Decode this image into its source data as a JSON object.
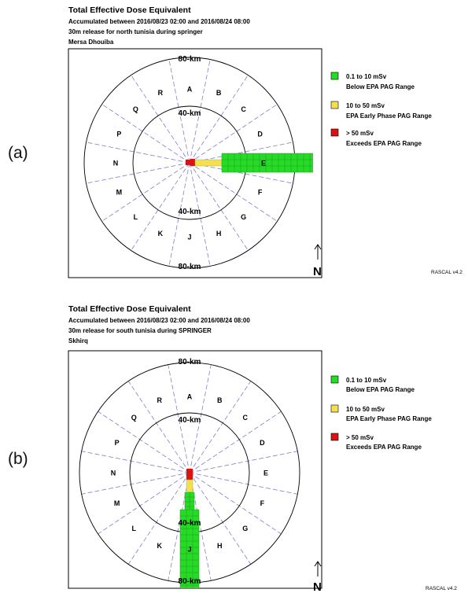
{
  "panels": [
    {
      "label": "(a)",
      "title": "Total Effective Dose Equivalent",
      "subtitle1": "Accumulated between 2016/08/23 02:00 and 2016/08/24 08:00",
      "subtitle2": "30m release for north tunisia during springer",
      "site": "Mersa Dhouiba"
    },
    {
      "label": "(b)",
      "title": "Total Effective Dose Equivalent",
      "subtitle1": "Accumulated between 2016/08/23 02:00 and 2016/08/24 08:00",
      "subtitle2": "30m release for south tunisia during SPRINGER",
      "site": "Skhirq"
    }
  ],
  "rings": {
    "outer": "80-km",
    "inner": "40-km"
  },
  "sectors": [
    "A",
    "B",
    "C",
    "D",
    "E",
    "F",
    "G",
    "H",
    "J",
    "K",
    "L",
    "M",
    "N",
    "P",
    "Q",
    "R"
  ],
  "legend": [
    {
      "color": "#22dd22",
      "range": "0.1 to 10 mSv",
      "desc": "Below EPA PAG Range"
    },
    {
      "color": "#f4e04a",
      "range": "10 to 50 mSv",
      "desc": "EPA Early Phase PAG Range"
    },
    {
      "color": "#dd1111",
      "range": "> 50 mSv",
      "desc": "Exceeds EPA PAG Range"
    }
  ],
  "north": {
    "label": "N",
    "arrow_icon": "north-arrow-icon"
  },
  "software": "RASCAL v4.2",
  "colors": {
    "sector_lines": "#8080c8",
    "grid_lines": "#3a8a3a"
  }
}
